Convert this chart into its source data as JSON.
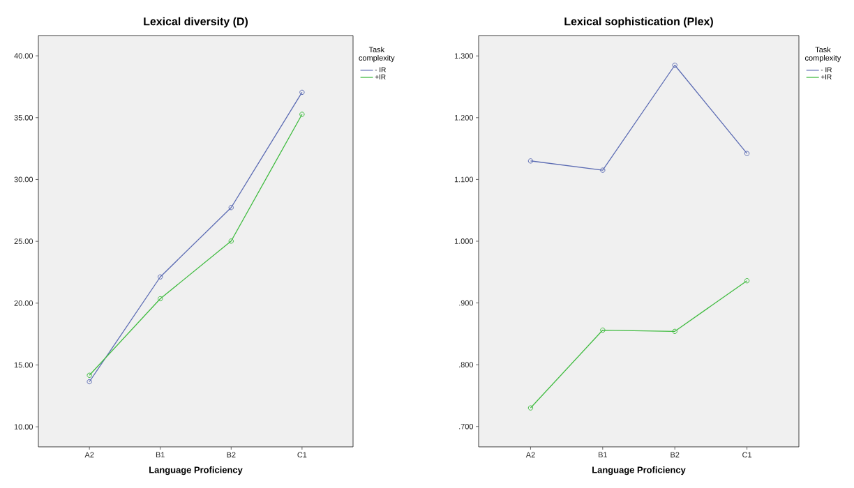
{
  "chart_data": [
    {
      "type": "line",
      "title": "Lexical diversity (D)",
      "xlabel": "Language Proficiency",
      "legend_title": "Task complexity",
      "categories": [
        "A2",
        "B1",
        "B2",
        "C1"
      ],
      "series": [
        {
          "name": "- IR",
          "color": "#5b6bb3",
          "values": [
            13.65,
            22.12,
            27.73,
            37.05
          ]
        },
        {
          "name": "+IR",
          "color": "#3fbb3f",
          "values": [
            14.17,
            20.36,
            25.02,
            35.27
          ]
        }
      ],
      "ylim": [
        8.38,
        41.64
      ],
      "yticks": [
        {
          "value": 10,
          "label": "10.00"
        },
        {
          "value": 15,
          "label": "15.00"
        },
        {
          "value": 20,
          "label": "20.00"
        },
        {
          "value": 25,
          "label": "25.00"
        },
        {
          "value": 30,
          "label": "30.00"
        },
        {
          "value": 35,
          "label": "35.00"
        },
        {
          "value": 40,
          "label": "40.00"
        }
      ],
      "legend": "right",
      "marker": "circle",
      "grid": false
    },
    {
      "type": "line",
      "title": "Lexical sophistication (Plex)",
      "xlabel": "Language Proficiency",
      "legend_title": "Task complexity",
      "categories": [
        "A2",
        "B1",
        "B2",
        "C1"
      ],
      "series": [
        {
          "name": "- IR",
          "color": "#5b6bb3",
          "values": [
            1.13,
            1.115,
            1.285,
            1.142
          ]
        },
        {
          "name": "+IR",
          "color": "#3fbb3f",
          "values": [
            0.73,
            0.856,
            0.854,
            0.936
          ]
        }
      ],
      "ylim": [
        0.667,
        1.333
      ],
      "yticks": [
        {
          "value": 0.7,
          "label": ".700"
        },
        {
          "value": 0.8,
          "label": ".800"
        },
        {
          "value": 0.9,
          "label": ".900"
        },
        {
          "value": 1.0,
          "label": "1.000"
        },
        {
          "value": 1.1,
          "label": "1.100"
        },
        {
          "value": 1.2,
          "label": "1.200"
        },
        {
          "value": 1.3,
          "label": "1.300"
        }
      ],
      "legend": "right",
      "marker": "circle",
      "grid": false
    }
  ]
}
